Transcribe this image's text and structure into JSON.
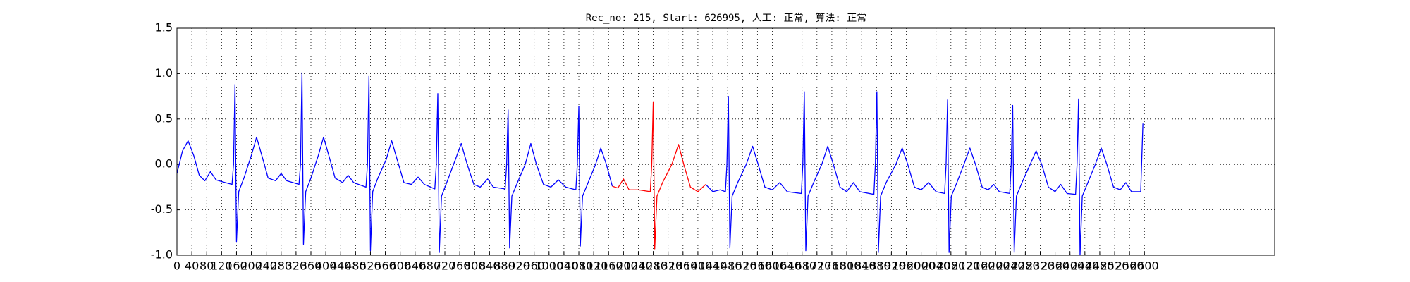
{
  "chart_data": {
    "type": "line",
    "title": "Rec_no: 215, Start: 626995, 人工: 正常, 算法: 正常",
    "x": [
      0,
      15,
      30,
      45,
      60,
      75,
      90,
      105,
      130,
      148,
      152,
      156,
      160,
      166,
      180,
      200,
      214,
      228,
      245,
      265,
      280,
      295,
      328,
      332,
      336,
      340,
      346,
      360,
      380,
      394,
      408,
      425,
      445,
      460,
      475,
      508,
      512,
      516,
      520,
      526,
      540,
      562,
      577,
      592,
      610,
      630,
      648,
      665,
      693,
      697,
      701,
      705,
      711,
      725,
      748,
      764,
      780,
      798,
      815,
      835,
      850,
      882,
      886,
      890,
      894,
      900,
      915,
      936,
      951,
      966,
      985,
      1005,
      1025,
      1045,
      1072,
      1076,
      1080,
      1084,
      1090,
      1105,
      1125,
      1139,
      1154,
      1170,
      1185,
      1200,
      1215,
      1240,
      1272,
      1276,
      1280,
      1284,
      1290,
      1305,
      1330,
      1348,
      1362,
      1380,
      1400,
      1421,
      1440,
      1460,
      1474,
      1478,
      1482,
      1486,
      1492,
      1507,
      1530,
      1547,
      1562,
      1580,
      1600,
      1620,
      1640,
      1678,
      1682,
      1686,
      1690,
      1696,
      1711,
      1733,
      1749,
      1764,
      1782,
      1800,
      1818,
      1835,
      1873,
      1877,
      1881,
      1885,
      1891,
      1906,
      1932,
      1949,
      1964,
      1982,
      2000,
      2020,
      2040,
      2063,
      2067,
      2071,
      2075,
      2081,
      2096,
      2115,
      2131,
      2146,
      2164,
      2180,
      2195,
      2210,
      2238,
      2242,
      2246,
      2250,
      2256,
      2271,
      2293,
      2309,
      2324,
      2342,
      2360,
      2375,
      2392,
      2415,
      2419,
      2423,
      2427,
      2433,
      2448,
      2468,
      2484,
      2499,
      2517,
      2535,
      2550,
      2565,
      2590,
      2596
    ],
    "series": [
      {
        "color": "#0000ff",
        "values": [
          -0.1,
          0.15,
          0.26,
          0.1,
          -0.12,
          -0.18,
          -0.08,
          -0.17,
          -0.2,
          -0.22,
          0,
          0.88,
          -0.85,
          -0.3,
          -0.15,
          0.1,
          0.3,
          0.1,
          -0.15,
          -0.18,
          -0.1,
          -0.18,
          -0.22,
          0,
          1.01,
          -0.88,
          -0.3,
          -0.15,
          0.1,
          0.3,
          0.1,
          -0.15,
          -0.2,
          -0.12,
          -0.2,
          -0.25,
          0,
          0.97,
          -0.95,
          -0.3,
          -0.15,
          0.05,
          0.26,
          0.05,
          -0.2,
          -0.22,
          -0.14,
          -0.22,
          -0.27,
          0,
          0.78,
          -0.97,
          -0.35,
          -0.2,
          0.05,
          0.23,
          0,
          -0.22,
          -0.25,
          -0.16,
          -0.25,
          -0.27,
          0,
          0.6,
          -0.92,
          -0.35,
          -0.2,
          0,
          0.23,
          0,
          -0.22,
          -0.25,
          -0.17,
          -0.25,
          -0.28,
          0,
          0.64,
          -0.9,
          -0.35,
          -0.2,
          0,
          0.18,
          0,
          -0.24,
          null,
          null,
          null,
          null,
          null,
          null,
          null,
          null,
          null,
          null,
          null,
          null,
          null,
          null,
          null,
          -0.22,
          -0.3,
          -0.28,
          -0.3,
          0,
          0.75,
          -0.92,
          -0.35,
          -0.2,
          0,
          0.2,
          0,
          -0.25,
          -0.28,
          -0.2,
          -0.3,
          -0.32,
          0,
          0.8,
          -0.95,
          -0.35,
          -0.2,
          0,
          0.2,
          0,
          -0.25,
          -0.3,
          -0.2,
          -0.3,
          -0.33,
          0,
          0.8,
          -0.97,
          -0.35,
          -0.2,
          0,
          0.18,
          0,
          -0.25,
          -0.28,
          -0.2,
          -0.3,
          -0.32,
          0,
          0.71,
          -0.97,
          -0.35,
          -0.2,
          0,
          0.18,
          0,
          -0.25,
          -0.28,
          -0.22,
          -0.3,
          -0.32,
          0,
          0.65,
          -0.97,
          -0.35,
          -0.2,
          0,
          0.15,
          0,
          -0.25,
          -0.3,
          -0.22,
          -0.32,
          -0.33,
          0,
          0.72,
          -1.0,
          -0.35,
          -0.2,
          0,
          0.18,
          0,
          -0.25,
          -0.28,
          -0.2,
          -0.3,
          -0.3,
          0.45
        ]
      },
      {
        "color": "#ff0000",
        "values": [
          null,
          null,
          null,
          null,
          null,
          null,
          null,
          null,
          null,
          null,
          null,
          null,
          null,
          null,
          null,
          null,
          null,
          null,
          null,
          null,
          null,
          null,
          null,
          null,
          null,
          null,
          null,
          null,
          null,
          null,
          null,
          null,
          null,
          null,
          null,
          null,
          null,
          null,
          null,
          null,
          null,
          null,
          null,
          null,
          null,
          null,
          null,
          null,
          null,
          null,
          null,
          null,
          null,
          null,
          null,
          null,
          null,
          null,
          null,
          null,
          null,
          null,
          null,
          null,
          null,
          null,
          null,
          null,
          null,
          null,
          null,
          null,
          null,
          null,
          null,
          null,
          null,
          null,
          null,
          null,
          null,
          null,
          null,
          -0.24,
          -0.26,
          -0.16,
          -0.28,
          -0.28,
          -0.3,
          0,
          0.69,
          -0.93,
          -0.35,
          -0.2,
          0,
          0.22,
          0,
          -0.25,
          -0.3,
          -0.22,
          null,
          null,
          null,
          null,
          null,
          null,
          null,
          null,
          null,
          null,
          null,
          null,
          null,
          null,
          null,
          null,
          null,
          null,
          null,
          null,
          null,
          null,
          null,
          null,
          null,
          null,
          null,
          null,
          null,
          null,
          null,
          null,
          null,
          null,
          null,
          null,
          null,
          null,
          null,
          null,
          null,
          null,
          null,
          null,
          null,
          null,
          null,
          null,
          null,
          null,
          null,
          null,
          null,
          null,
          null,
          null,
          null,
          null,
          null,
          null,
          null,
          null,
          null,
          null,
          null,
          null,
          null,
          null,
          null,
          null,
          null,
          null,
          null,
          null,
          null,
          null,
          null,
          null,
          null,
          null,
          null,
          null
        ]
      }
    ],
    "xlim": [
      0,
      2950
    ],
    "xticks": [
      0,
      40,
      80,
      120,
      160,
      200,
      240,
      280,
      320,
      360,
      400,
      440,
      480,
      520,
      560,
      600,
      640,
      680,
      720,
      760,
      800,
      840,
      880,
      920,
      960,
      1000,
      1040,
      1080,
      1120,
      1160,
      1200,
      1240,
      1280,
      1320,
      1360,
      1400,
      1440,
      1480,
      1520,
      1560,
      1600,
      1640,
      1680,
      1720,
      1760,
      1800,
      1840,
      1880,
      1920,
      1960,
      2000,
      2040,
      2080,
      2120,
      2160,
      2200,
      2240,
      2280,
      2320,
      2360,
      2400,
      2440,
      2480,
      2520,
      2560,
      2600
    ],
    "ylim": [
      -1,
      1.5
    ],
    "yticks": [
      {
        "value": -1,
        "label": "-1.0"
      },
      -0.5,
      {
        "value": 0,
        "label": "0.0"
      },
      0.5,
      {
        "value": 1,
        "label": "1.0"
      },
      1.5
    ],
    "grid": true
  }
}
